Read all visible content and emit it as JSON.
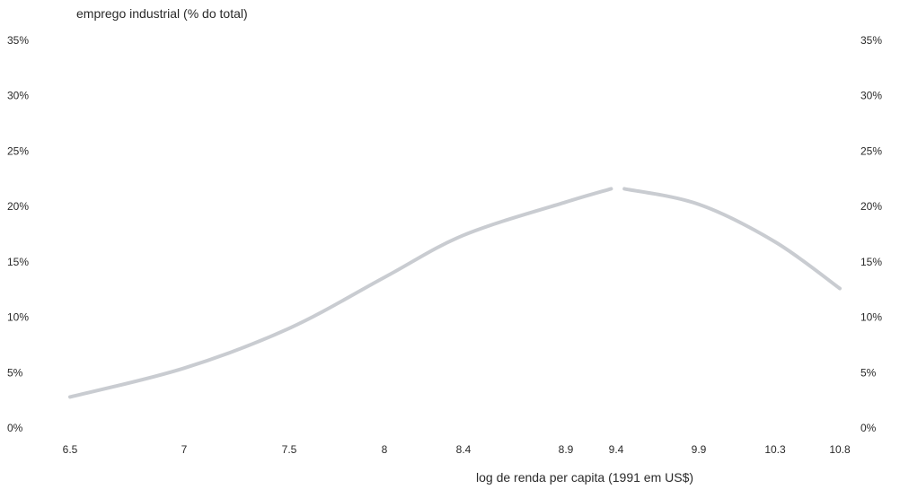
{
  "chart_data": {
    "type": "line",
    "ylabel": "emprego industrial (% do total)",
    "xlabel": "log de renda per capita (1991 em US$)",
    "x_tick_labels": [
      "6.5",
      "7",
      "7.5",
      "8",
      "8.4",
      "8.9",
      "9.4",
      "9.9",
      "10.3",
      "10.8"
    ],
    "y_tick_labels": [
      "0%",
      "5%",
      "10%",
      "15%",
      "20%",
      "25%",
      "30%",
      "35%"
    ],
    "ylim": [
      0,
      35
    ],
    "grid": false,
    "legend": "none",
    "series": [
      {
        "x": [
          6.5,
          7.0,
          7.5,
          8.0,
          8.4,
          8.9,
          9.35,
          9.45,
          9.9,
          10.3,
          10.8
        ],
        "y": [
          2.8,
          5.4,
          9.0,
          13.6,
          17.4,
          20.4,
          21.6,
          21.6,
          20.2,
          16.8,
          12.6
        ]
      }
    ],
    "colors": {
      "line": "#c9ccd1",
      "text": "#2a2a2a"
    }
  }
}
